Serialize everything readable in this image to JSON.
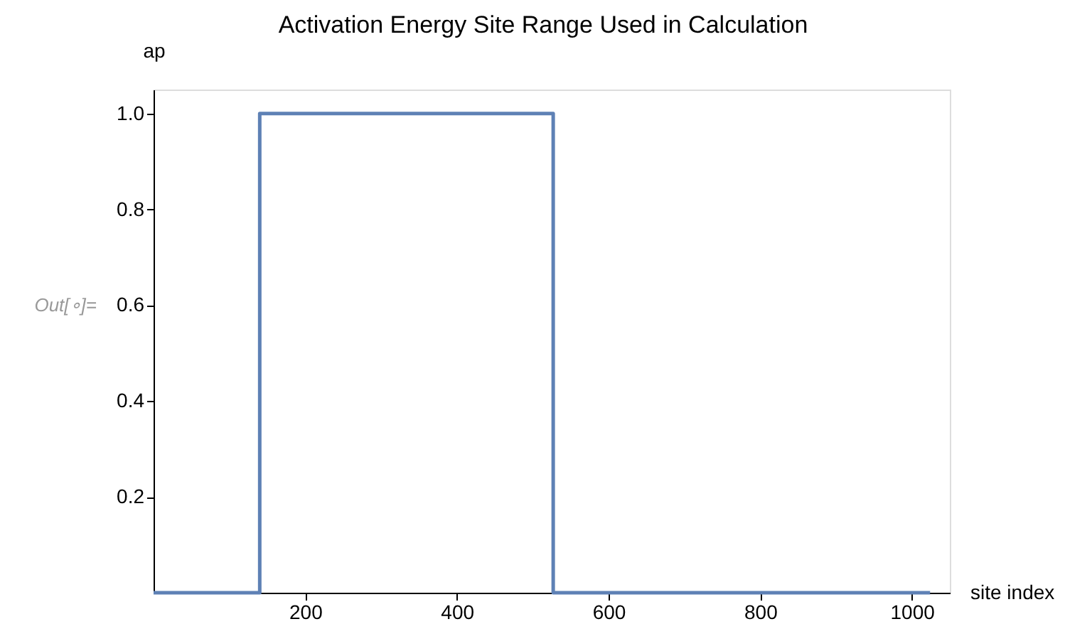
{
  "chart_data": {
    "type": "line",
    "title": "Activation Energy Site Range Used in Calculation",
    "xlabel": "site index",
    "ylabel": "ap",
    "annotations": [
      "Out[∘]="
    ],
    "x": [
      0,
      140,
      140,
      527,
      527,
      1024
    ],
    "series": [
      {
        "color": "#5e81b5",
        "values": [
          0,
          0,
          1,
          1,
          0,
          0
        ]
      }
    ],
    "xlim": [
      0,
      1050
    ],
    "ylim": [
      0,
      1.05
    ],
    "xticks": [
      200,
      400,
      600,
      800,
      1000
    ],
    "yticks": [
      0.2,
      0.4,
      0.6,
      0.8,
      {
        "value": 1,
        "label": "1.0"
      }
    ],
    "grid": false,
    "marker": "none",
    "line_style": "solid"
  }
}
